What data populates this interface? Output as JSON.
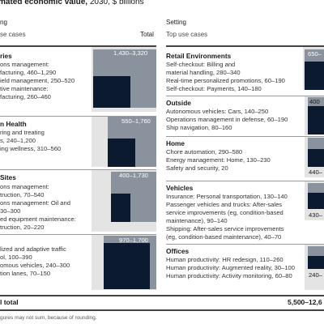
{
  "header": {
    "title_bold": "mated economic value,",
    "title_rest": " 2030, $ billions"
  },
  "columns": {
    "left_heading": "ng",
    "left_sub": "se cases",
    "left_total": "Total",
    "right_heading": "Setting",
    "right_sub": "Top use cases"
  },
  "chart_data": {
    "type": "table",
    "title": "mated economic value, 2030, $ billions",
    "left_column": [
      {
        "name": "ries",
        "range": "1,430–3,320",
        "low": 1430,
        "high": 3320,
        "use_cases": [
          "ons management:",
          "facturing, 460–1,290",
          "ield management, 250–520",
          "tive maintenance:",
          "facturing, 260–460"
        ]
      },
      {
        "name": "n Health",
        "range": "550–1,760",
        "low": 550,
        "high": 1760,
        "use_cases": [
          "ring and treating",
          "s, 240–1,200",
          "ing wellness, 310–560"
        ]
      },
      {
        "name": "Sites",
        "range": "400–1,730",
        "low": 400,
        "high": 1730,
        "use_cases": [
          "ons management:",
          "truction, 70–540",
          "ons management: Oil and",
          "30–300",
          "ed equipment maintenance:",
          "truction, 20–220"
        ]
      },
      {
        "name": "",
        "range": "970–1,700",
        "low": 970,
        "high": 1700,
        "use_cases": [
          "lized and adaptive traffic",
          "ol, 100–390",
          "omous vehicles, 240–300",
          "tion lanes, 70–150"
        ]
      }
    ],
    "right_column": [
      {
        "name": "Retail Environments",
        "range": "650–",
        "use_cases": [
          "Self-checkout: Billing and",
          "material handling, 280–340",
          "Real-time personalized promotions, 60–190",
          "Self-checkout: Payments, 140–180"
        ]
      },
      {
        "name": "Outside",
        "range": "400",
        "use_cases": [
          "Autonomous vehicles: Cars, 140–250",
          "Operations management in defense, 60–190",
          "Ship navigation, 80–160"
        ]
      },
      {
        "name": "Home",
        "range": "440–",
        "use_cases": [
          "Chore automation, 290–580",
          "Energy management: Home, 130–230",
          "Safety and security, 20"
        ]
      },
      {
        "name": "Vehicles",
        "range": "430–",
        "use_cases": [
          "Insurance: Personal transportation, 130–140",
          "Passenger vehicles and trucks: After-sales",
          "service improvements (eg, condition-based",
          "maintenance), 90–140",
          "Shipping: After-sales service improvements",
          "(eg, condition-based maintenance), 40–70"
        ]
      },
      {
        "name": "Offices",
        "range": "240–",
        "use_cases": [
          "Human productivity: HR redesign, 110–260",
          "Human productivity: Augmented reality, 30–100",
          "Human productivity: Activity monitoring, 60–80"
        ]
      }
    ],
    "total": {
      "label": "l total",
      "value": "5,500–12,6"
    }
  },
  "footnote": "gures may not sum, because of rounding.",
  "colors": {
    "outer_box": "#8a929d",
    "inner_box": "#0b1a2e",
    "shade": "#e4e4e4"
  }
}
